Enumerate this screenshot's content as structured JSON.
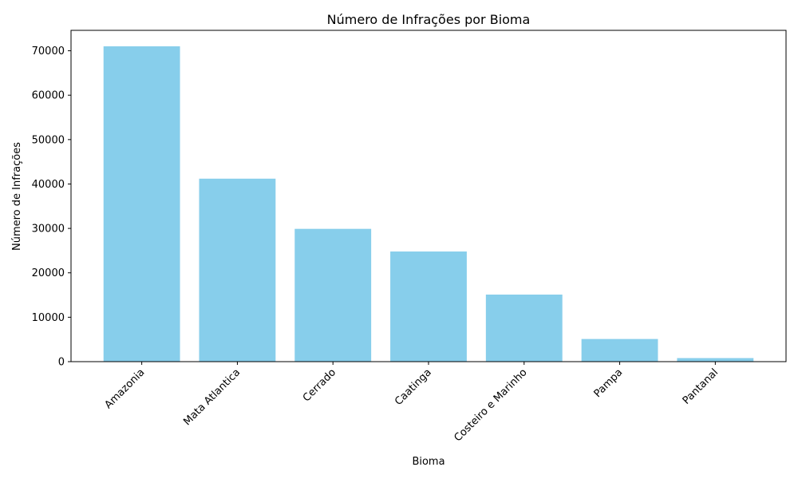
{
  "chart_data": {
    "type": "bar",
    "title": "Número de Infrações por Bioma",
    "xlabel": "Bioma",
    "ylabel": "Número de Infrações",
    "categories": [
      "Amazonia",
      "Mata Atlantica",
      "Cerrado",
      "Caatinga",
      "Costeiro e Marinho",
      "Pampa",
      "Pantanal"
    ],
    "values": [
      71000,
      41200,
      29900,
      24800,
      15100,
      5100,
      800
    ],
    "ylim": [
      0,
      74600
    ],
    "yticks": [
      0,
      10000,
      20000,
      30000,
      40000,
      50000,
      60000,
      70000
    ],
    "color": "#87ceeb",
    "grid": false
  }
}
